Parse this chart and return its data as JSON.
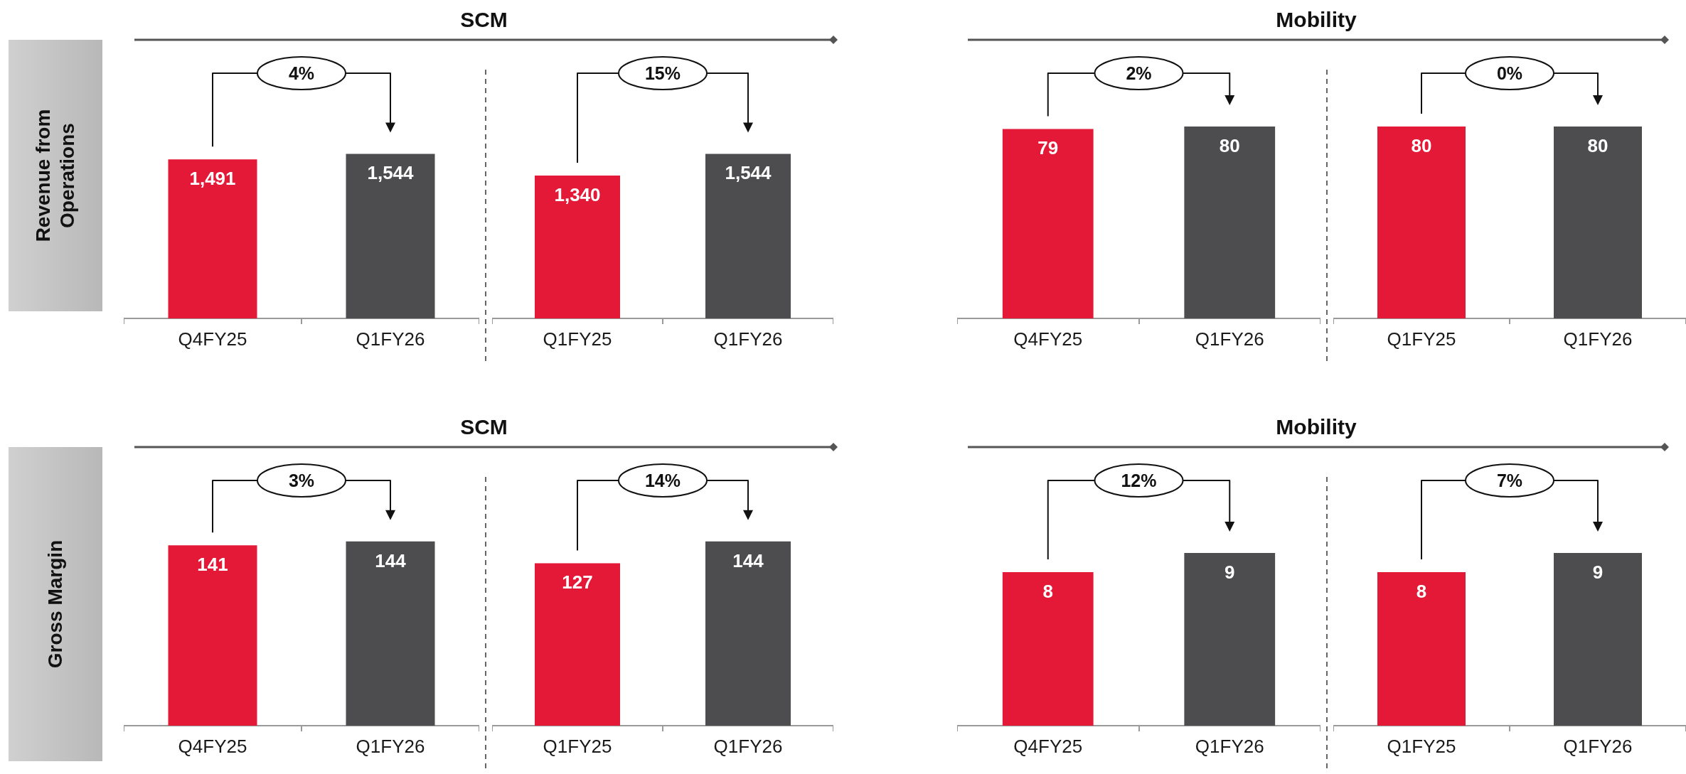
{
  "chart_data": [
    {
      "type": "bar",
      "title": "SCM",
      "ylabel": "Revenue from Operations",
      "categories": [
        "Q4FY25",
        "Q1FY26"
      ],
      "values": [
        1491,
        1544
      ],
      "value_labels": [
        "1,491",
        "1,544"
      ],
      "colors": [
        "#e31937",
        "#4d4d4f"
      ],
      "tick_labels": "x",
      "annotations": [
        "4%"
      ]
    },
    {
      "type": "bar",
      "categories": [
        "Q1FY25",
        "Q1FY26"
      ],
      "values": [
        1340,
        1544
      ],
      "value_labels": [
        "1,340",
        "1,544"
      ],
      "colors": [
        "#e31937",
        "#4d4d4f"
      ],
      "tick_labels": "x",
      "annotations": [
        "15%"
      ]
    },
    {
      "type": "bar",
      "title": "Mobility",
      "categories": [
        "Q4FY25",
        "Q1FY26"
      ],
      "values": [
        79,
        80
      ],
      "colors": [
        "#e31937",
        "#4d4d4f"
      ],
      "data_labels": true,
      "tick_labels": "x",
      "annotations": [
        "2%"
      ]
    },
    {
      "type": "bar",
      "categories": [
        "Q1FY25",
        "Q1FY26"
      ],
      "values": [
        80,
        80
      ],
      "colors": [
        "#e31937",
        "#4d4d4f"
      ],
      "data_labels": true,
      "tick_labels": "x",
      "annotations": [
        "0%"
      ]
    },
    {
      "type": "bar",
      "title": "SCM",
      "ylabel": "Gross Margin",
      "categories": [
        "Q4FY25",
        "Q1FY26"
      ],
      "values": [
        141,
        144
      ],
      "colors": [
        "#e31937",
        "#4d4d4f"
      ],
      "data_labels": true,
      "tick_labels": "x",
      "annotations": [
        "3%"
      ]
    },
    {
      "type": "bar",
      "categories": [
        "Q1FY25",
        "Q1FY26"
      ],
      "values": [
        127,
        144
      ],
      "colors": [
        "#e31937",
        "#4d4d4f"
      ],
      "data_labels": true,
      "tick_labels": "x",
      "annotations": [
        "14%"
      ]
    },
    {
      "type": "bar",
      "title": "Mobility",
      "categories": [
        "Q4FY25",
        "Q1FY26"
      ],
      "values": [
        8,
        9
      ],
      "colors": [
        "#e31937",
        "#4d4d4f"
      ],
      "data_labels": true,
      "tick_labels": "x",
      "annotations": [
        "12%"
      ]
    },
    {
      "type": "bar",
      "categories": [
        "Q1FY25",
        "Q1FY26"
      ],
      "values": [
        8,
        9
      ],
      "colors": [
        "#e31937",
        "#4d4d4f"
      ],
      "data_labels": true,
      "tick_labels": "x",
      "annotations": [
        "7%"
      ]
    }
  ]
}
